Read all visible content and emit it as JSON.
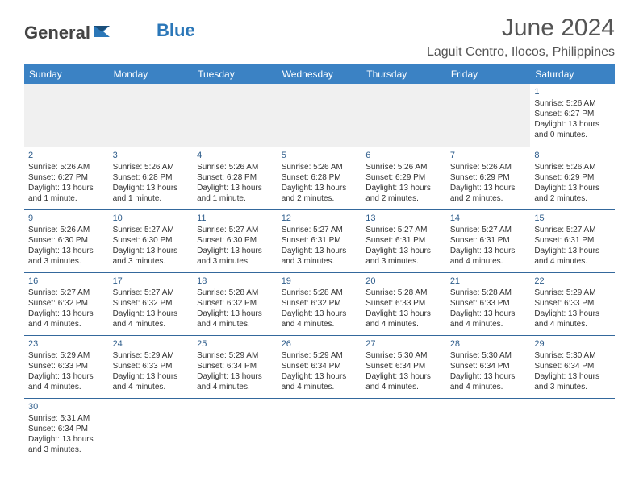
{
  "logo": {
    "text1": "General",
    "text2": "Blue"
  },
  "title": "June 2024",
  "subtitle": "Laguit Centro, Ilocos, Philippines",
  "dayHeaders": [
    "Sunday",
    "Monday",
    "Tuesday",
    "Wednesday",
    "Thursday",
    "Friday",
    "Saturday"
  ],
  "colors": {
    "headerBg": "#3b82c4",
    "headerText": "#ffffff",
    "dayNum": "#2d5c8b",
    "rowBorder": "#34689c",
    "logoBlue": "#2b77b8"
  },
  "firstWeekPadding": 6,
  "days": [
    {
      "n": "1",
      "sr": "5:26 AM",
      "ss": "6:27 PM",
      "dl": "13 hours and 0 minutes."
    },
    {
      "n": "2",
      "sr": "5:26 AM",
      "ss": "6:27 PM",
      "dl": "13 hours and 1 minute."
    },
    {
      "n": "3",
      "sr": "5:26 AM",
      "ss": "6:28 PM",
      "dl": "13 hours and 1 minute."
    },
    {
      "n": "4",
      "sr": "5:26 AM",
      "ss": "6:28 PM",
      "dl": "13 hours and 1 minute."
    },
    {
      "n": "5",
      "sr": "5:26 AM",
      "ss": "6:28 PM",
      "dl": "13 hours and 2 minutes."
    },
    {
      "n": "6",
      "sr": "5:26 AM",
      "ss": "6:29 PM",
      "dl": "13 hours and 2 minutes."
    },
    {
      "n": "7",
      "sr": "5:26 AM",
      "ss": "6:29 PM",
      "dl": "13 hours and 2 minutes."
    },
    {
      "n": "8",
      "sr": "5:26 AM",
      "ss": "6:29 PM",
      "dl": "13 hours and 2 minutes."
    },
    {
      "n": "9",
      "sr": "5:26 AM",
      "ss": "6:30 PM",
      "dl": "13 hours and 3 minutes."
    },
    {
      "n": "10",
      "sr": "5:27 AM",
      "ss": "6:30 PM",
      "dl": "13 hours and 3 minutes."
    },
    {
      "n": "11",
      "sr": "5:27 AM",
      "ss": "6:30 PM",
      "dl": "13 hours and 3 minutes."
    },
    {
      "n": "12",
      "sr": "5:27 AM",
      "ss": "6:31 PM",
      "dl": "13 hours and 3 minutes."
    },
    {
      "n": "13",
      "sr": "5:27 AM",
      "ss": "6:31 PM",
      "dl": "13 hours and 3 minutes."
    },
    {
      "n": "14",
      "sr": "5:27 AM",
      "ss": "6:31 PM",
      "dl": "13 hours and 4 minutes."
    },
    {
      "n": "15",
      "sr": "5:27 AM",
      "ss": "6:31 PM",
      "dl": "13 hours and 4 minutes."
    },
    {
      "n": "16",
      "sr": "5:27 AM",
      "ss": "6:32 PM",
      "dl": "13 hours and 4 minutes."
    },
    {
      "n": "17",
      "sr": "5:27 AM",
      "ss": "6:32 PM",
      "dl": "13 hours and 4 minutes."
    },
    {
      "n": "18",
      "sr": "5:28 AM",
      "ss": "6:32 PM",
      "dl": "13 hours and 4 minutes."
    },
    {
      "n": "19",
      "sr": "5:28 AM",
      "ss": "6:32 PM",
      "dl": "13 hours and 4 minutes."
    },
    {
      "n": "20",
      "sr": "5:28 AM",
      "ss": "6:33 PM",
      "dl": "13 hours and 4 minutes."
    },
    {
      "n": "21",
      "sr": "5:28 AM",
      "ss": "6:33 PM",
      "dl": "13 hours and 4 minutes."
    },
    {
      "n": "22",
      "sr": "5:29 AM",
      "ss": "6:33 PM",
      "dl": "13 hours and 4 minutes."
    },
    {
      "n": "23",
      "sr": "5:29 AM",
      "ss": "6:33 PM",
      "dl": "13 hours and 4 minutes."
    },
    {
      "n": "24",
      "sr": "5:29 AM",
      "ss": "6:33 PM",
      "dl": "13 hours and 4 minutes."
    },
    {
      "n": "25",
      "sr": "5:29 AM",
      "ss": "6:34 PM",
      "dl": "13 hours and 4 minutes."
    },
    {
      "n": "26",
      "sr": "5:29 AM",
      "ss": "6:34 PM",
      "dl": "13 hours and 4 minutes."
    },
    {
      "n": "27",
      "sr": "5:30 AM",
      "ss": "6:34 PM",
      "dl": "13 hours and 4 minutes."
    },
    {
      "n": "28",
      "sr": "5:30 AM",
      "ss": "6:34 PM",
      "dl": "13 hours and 4 minutes."
    },
    {
      "n": "29",
      "sr": "5:30 AM",
      "ss": "6:34 PM",
      "dl": "13 hours and 3 minutes."
    },
    {
      "n": "30",
      "sr": "5:31 AM",
      "ss": "6:34 PM",
      "dl": "13 hours and 3 minutes."
    }
  ],
  "labels": {
    "sunrise": "Sunrise: ",
    "sunset": "Sunset: ",
    "daylight": "Daylight: "
  }
}
